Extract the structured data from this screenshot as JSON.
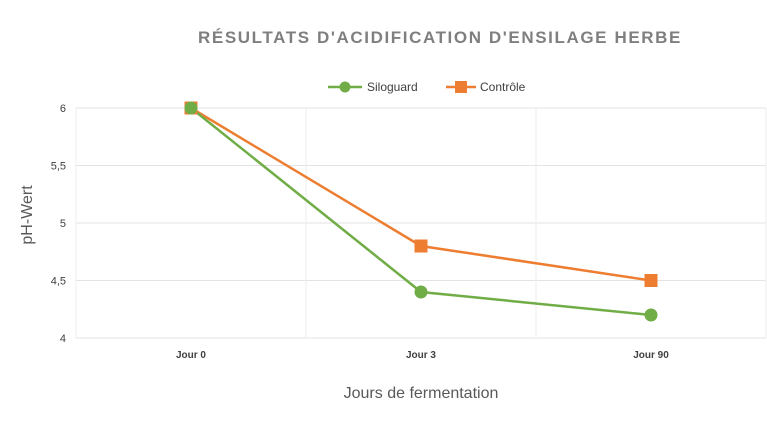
{
  "chart_data": {
    "type": "line",
    "title": "RÉSULTATS D'ACIDIFICATION D'ENSILAGE HERBE",
    "xlabel": "Jours de fermentation",
    "ylabel": "pH-Wert",
    "categories": [
      "Jour 0",
      "Jour 3",
      "Jour 90"
    ],
    "ylim": [
      4,
      6
    ],
    "yticks": [
      "4",
      "4,5",
      "5",
      "5,5",
      "6"
    ],
    "ytick_values": [
      4,
      4.5,
      5,
      5.5,
      6
    ],
    "grid": true,
    "legend_position": "top",
    "series": [
      {
        "name": "Siloguard",
        "values": [
          6.0,
          4.4,
          4.2
        ],
        "color": "#70ad47",
        "marker": "circle"
      },
      {
        "name": "Contrôle",
        "values": [
          6.0,
          4.8,
          4.5
        ],
        "color": "#ed7d31",
        "marker": "square"
      }
    ]
  }
}
